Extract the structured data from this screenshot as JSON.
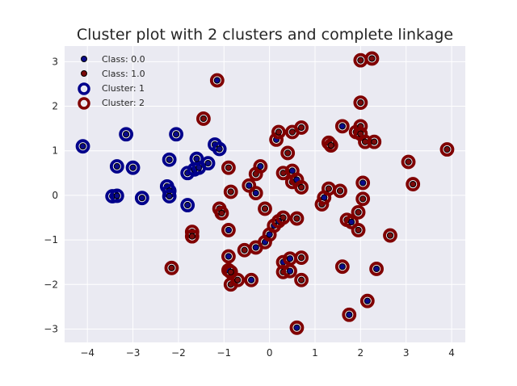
{
  "chart_data": {
    "type": "scatter",
    "title": "Cluster plot with 2 clusters and complete linkage",
    "xlabel": "",
    "ylabel": "",
    "xlim": [
      -4.5,
      4.3
    ],
    "ylim": [
      -3.3,
      3.35
    ],
    "xticks": [
      -4,
      -3,
      -2,
      -1,
      0,
      1,
      2,
      3,
      4
    ],
    "yticks": [
      -3,
      -2,
      -1,
      0,
      1,
      2,
      3
    ],
    "xtick_labels": [
      "−4",
      "−3",
      "−2",
      "−1",
      "0",
      "1",
      "2",
      "3",
      "4"
    ],
    "ytick_labels": [
      "−3",
      "−2",
      "−1",
      "0",
      "1",
      "2",
      "3"
    ],
    "grid": true,
    "legend_position": "top-left",
    "legend": [
      {
        "label": "Class: 0.0",
        "marker": "dot",
        "color": "#0a0a8a"
      },
      {
        "label": "Class: 1.0",
        "marker": "dot",
        "color": "#7a0a0a"
      },
      {
        "label": "Cluster: 1",
        "marker": "ring",
        "color": "#00008b"
      },
      {
        "label": "Cluster: 2",
        "marker": "ring",
        "color": "#800000"
      }
    ],
    "colors": {
      "class0": "#0a0a8a",
      "class1": "#7a0a0a",
      "cluster1": "#00008b",
      "cluster2": "#800000",
      "background": "#eaeaf2",
      "grid": "#ffffff"
    },
    "points": [
      {
        "x": -4.1,
        "y": 1.1,
        "cls": 0,
        "cluster": 1
      },
      {
        "x": -3.45,
        "y": -0.02,
        "cls": 0,
        "cluster": 1
      },
      {
        "x": -3.35,
        "y": -0.01,
        "cls": 0,
        "cluster": 1
      },
      {
        "x": -3.35,
        "y": 0.65,
        "cls": 0,
        "cluster": 1
      },
      {
        "x": -3.15,
        "y": 1.37,
        "cls": 0,
        "cluster": 1
      },
      {
        "x": -3.0,
        "y": 0.62,
        "cls": 0,
        "cluster": 1
      },
      {
        "x": -2.8,
        "y": -0.06,
        "cls": 0,
        "cluster": 1
      },
      {
        "x": -2.25,
        "y": 0.2,
        "cls": 0,
        "cluster": 1
      },
      {
        "x": -2.2,
        "y": 0.1,
        "cls": 0,
        "cluster": 1
      },
      {
        "x": -2.2,
        "y": -0.02,
        "cls": 0,
        "cluster": 1
      },
      {
        "x": -2.2,
        "y": 0.8,
        "cls": 0,
        "cluster": 1
      },
      {
        "x": -2.05,
        "y": 1.37,
        "cls": 0,
        "cluster": 1
      },
      {
        "x": -1.8,
        "y": -0.22,
        "cls": 0,
        "cluster": 1
      },
      {
        "x": -1.8,
        "y": 0.5,
        "cls": 0,
        "cluster": 1
      },
      {
        "x": -1.65,
        "y": 0.58,
        "cls": 0,
        "cluster": 1
      },
      {
        "x": -1.55,
        "y": 0.62,
        "cls": 0,
        "cluster": 1
      },
      {
        "x": -1.6,
        "y": 0.82,
        "cls": 0,
        "cluster": 1
      },
      {
        "x": -1.35,
        "y": 0.72,
        "cls": 0,
        "cluster": 1
      },
      {
        "x": -1.2,
        "y": 1.14,
        "cls": 0,
        "cluster": 1
      },
      {
        "x": -1.1,
        "y": 1.04,
        "cls": 0,
        "cluster": 1
      },
      {
        "x": -1.15,
        "y": 2.58,
        "cls": 0,
        "cluster": 2
      },
      {
        "x": -1.45,
        "y": 1.72,
        "cls": 1,
        "cluster": 2
      },
      {
        "x": -2.15,
        "y": -1.63,
        "cls": 1,
        "cluster": 2
      },
      {
        "x": -1.7,
        "y": -0.82,
        "cls": 1,
        "cluster": 2
      },
      {
        "x": -1.7,
        "y": -0.92,
        "cls": 1,
        "cluster": 2
      },
      {
        "x": -1.1,
        "y": -0.3,
        "cls": 1,
        "cluster": 2
      },
      {
        "x": -1.05,
        "y": -0.4,
        "cls": 1,
        "cluster": 2
      },
      {
        "x": -0.9,
        "y": -0.78,
        "cls": 0,
        "cluster": 2
      },
      {
        "x": -0.9,
        "y": 0.62,
        "cls": 1,
        "cluster": 2
      },
      {
        "x": -0.85,
        "y": 0.08,
        "cls": 1,
        "cluster": 2
      },
      {
        "x": -0.9,
        "y": -1.37,
        "cls": 0,
        "cluster": 2
      },
      {
        "x": -0.9,
        "y": -1.68,
        "cls": 0,
        "cluster": 2
      },
      {
        "x": -0.85,
        "y": -1.72,
        "cls": 1,
        "cluster": 2
      },
      {
        "x": -0.85,
        "y": -2.0,
        "cls": 1,
        "cluster": 2
      },
      {
        "x": -0.7,
        "y": -1.9,
        "cls": 1,
        "cluster": 2
      },
      {
        "x": -0.55,
        "y": -1.23,
        "cls": 1,
        "cluster": 2
      },
      {
        "x": -0.45,
        "y": 0.22,
        "cls": 0,
        "cluster": 2
      },
      {
        "x": -0.4,
        "y": -1.9,
        "cls": 0,
        "cluster": 2
      },
      {
        "x": -0.3,
        "y": -1.17,
        "cls": 0,
        "cluster": 2
      },
      {
        "x": -0.3,
        "y": 0.05,
        "cls": 0,
        "cluster": 2
      },
      {
        "x": -0.3,
        "y": 0.48,
        "cls": 1,
        "cluster": 2
      },
      {
        "x": -0.2,
        "y": 0.65,
        "cls": 0,
        "cluster": 2
      },
      {
        "x": -0.1,
        "y": -0.3,
        "cls": 1,
        "cluster": 2
      },
      {
        "x": -0.1,
        "y": -1.05,
        "cls": 0,
        "cluster": 2
      },
      {
        "x": 0.0,
        "y": -0.88,
        "cls": 0,
        "cluster": 2
      },
      {
        "x": 0.1,
        "y": -0.68,
        "cls": 0,
        "cluster": 2
      },
      {
        "x": 0.15,
        "y": 1.25,
        "cls": 0,
        "cluster": 2
      },
      {
        "x": 0.2,
        "y": 1.42,
        "cls": 1,
        "cluster": 2
      },
      {
        "x": 0.2,
        "y": -0.58,
        "cls": 0,
        "cluster": 2
      },
      {
        "x": 0.3,
        "y": -0.5,
        "cls": 1,
        "cluster": 2
      },
      {
        "x": 0.3,
        "y": 0.5,
        "cls": 1,
        "cluster": 2
      },
      {
        "x": 0.3,
        "y": -1.5,
        "cls": 0,
        "cluster": 2
      },
      {
        "x": 0.3,
        "y": -1.72,
        "cls": 1,
        "cluster": 2
      },
      {
        "x": 0.4,
        "y": 0.95,
        "cls": 1,
        "cluster": 2
      },
      {
        "x": 0.45,
        "y": -1.42,
        "cls": 0,
        "cluster": 2
      },
      {
        "x": 0.45,
        "y": -1.7,
        "cls": 0,
        "cluster": 2
      },
      {
        "x": 0.5,
        "y": 0.55,
        "cls": 0,
        "cluster": 2
      },
      {
        "x": 0.5,
        "y": 0.3,
        "cls": 1,
        "cluster": 2
      },
      {
        "x": 0.5,
        "y": 1.42,
        "cls": 1,
        "cluster": 2
      },
      {
        "x": 0.6,
        "y": -0.52,
        "cls": 1,
        "cluster": 2
      },
      {
        "x": 0.6,
        "y": 0.35,
        "cls": 0,
        "cluster": 2
      },
      {
        "x": 0.6,
        "y": -2.97,
        "cls": 0,
        "cluster": 2
      },
      {
        "x": 0.7,
        "y": 1.52,
        "cls": 1,
        "cluster": 2
      },
      {
        "x": 0.7,
        "y": 0.18,
        "cls": 1,
        "cluster": 2
      },
      {
        "x": 0.7,
        "y": -1.4,
        "cls": 1,
        "cluster": 2
      },
      {
        "x": 0.7,
        "y": -1.9,
        "cls": 1,
        "cluster": 2
      },
      {
        "x": 1.15,
        "y": -0.2,
        "cls": 1,
        "cluster": 2
      },
      {
        "x": 1.2,
        "y": -0.05,
        "cls": 0,
        "cluster": 2
      },
      {
        "x": 1.3,
        "y": 1.18,
        "cls": 1,
        "cluster": 2
      },
      {
        "x": 1.3,
        "y": 0.15,
        "cls": 1,
        "cluster": 2
      },
      {
        "x": 1.35,
        "y": 1.12,
        "cls": 1,
        "cluster": 2
      },
      {
        "x": 1.55,
        "y": 0.1,
        "cls": 1,
        "cluster": 2
      },
      {
        "x": 1.6,
        "y": 1.55,
        "cls": 0,
        "cluster": 2
      },
      {
        "x": 1.6,
        "y": -1.6,
        "cls": 0,
        "cluster": 2
      },
      {
        "x": 1.7,
        "y": -0.55,
        "cls": 1,
        "cluster": 2
      },
      {
        "x": 1.75,
        "y": -2.68,
        "cls": 0,
        "cluster": 2
      },
      {
        "x": 1.8,
        "y": -0.6,
        "cls": 0,
        "cluster": 2
      },
      {
        "x": 1.9,
        "y": 1.42,
        "cls": 1,
        "cluster": 2
      },
      {
        "x": 1.95,
        "y": -0.78,
        "cls": 1,
        "cluster": 2
      },
      {
        "x": 1.95,
        "y": -0.38,
        "cls": 1,
        "cluster": 2
      },
      {
        "x": 2.0,
        "y": 1.55,
        "cls": 1,
        "cluster": 2
      },
      {
        "x": 2.0,
        "y": 1.38,
        "cls": 1,
        "cluster": 2
      },
      {
        "x": 2.0,
        "y": 2.08,
        "cls": 1,
        "cluster": 2
      },
      {
        "x": 2.0,
        "y": 3.03,
        "cls": 1,
        "cluster": 2
      },
      {
        "x": 2.05,
        "y": 0.28,
        "cls": 0,
        "cluster": 2
      },
      {
        "x": 2.05,
        "y": -0.08,
        "cls": 1,
        "cluster": 2
      },
      {
        "x": 2.1,
        "y": 1.2,
        "cls": 1,
        "cluster": 2
      },
      {
        "x": 2.15,
        "y": -2.37,
        "cls": 0,
        "cluster": 2
      },
      {
        "x": 2.25,
        "y": 3.07,
        "cls": 1,
        "cluster": 2
      },
      {
        "x": 2.3,
        "y": 1.2,
        "cls": 1,
        "cluster": 2
      },
      {
        "x": 2.35,
        "y": -1.65,
        "cls": 0,
        "cluster": 2
      },
      {
        "x": 2.65,
        "y": -0.9,
        "cls": 1,
        "cluster": 2
      },
      {
        "x": 3.05,
        "y": 0.75,
        "cls": 1,
        "cluster": 2
      },
      {
        "x": 3.15,
        "y": 0.25,
        "cls": 1,
        "cluster": 2
      },
      {
        "x": 3.9,
        "y": 1.03,
        "cls": 1,
        "cluster": 2
      }
    ]
  }
}
